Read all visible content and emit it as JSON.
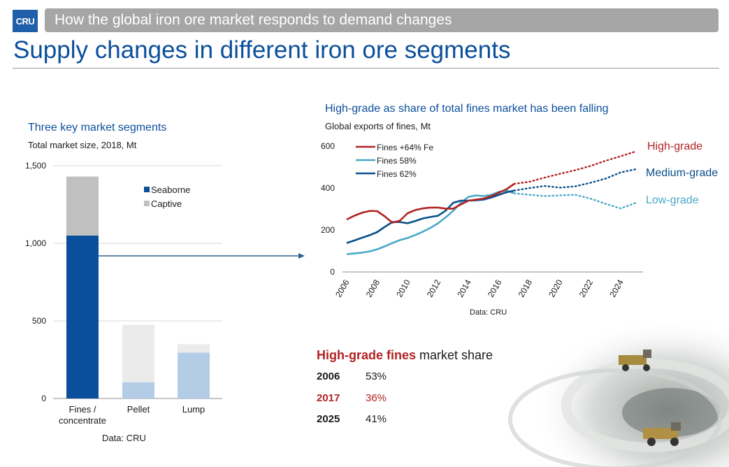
{
  "header": {
    "logo_text": "CRU",
    "banner": "How the global iron ore market responds to demand changes",
    "title": "Supply changes in different iron ore segments"
  },
  "left_chart_text": {
    "title": "Three key market segments",
    "subtitle": "Total market size, 2018, Mt",
    "source": "Data: CRU"
  },
  "right_chart_text": {
    "title": "High-grade as share of total fines market has been falling",
    "subtitle": "Global exports of fines, Mt",
    "source": "Data: CRU",
    "annotations": [
      "High-grade",
      "Medium-grade",
      "Low-grade"
    ]
  },
  "share": {
    "title_highlight": "High-grade fines",
    "title_rest": " market share",
    "rows": [
      {
        "year": "2006",
        "value": "53%"
      },
      {
        "year": "2017",
        "value": "36%"
      },
      {
        "year": "2025",
        "value": "41%"
      }
    ]
  },
  "colors": {
    "seaborne": "#0a4f9c",
    "captive": "#c0c0c0",
    "seaborne_light": "#b3cde6",
    "captive_light": "#ebebeb",
    "high": "#b22222",
    "low": "#4aa8c8",
    "medium": "#0a4f8a"
  },
  "chart_data": [
    {
      "type": "bar",
      "stacked": true,
      "title": "Three key market segments",
      "ylabel": "Total market size, 2018, Mt",
      "categories": [
        "Fines / concentrate",
        "Pellet",
        "Lump"
      ],
      "category_lines": [
        [
          "Fines /",
          "concentrate"
        ],
        [
          "Pellet"
        ],
        [
          "Lump"
        ]
      ],
      "series": [
        {
          "name": "Seaborne",
          "values": [
            1050,
            105,
            295
          ]
        },
        {
          "name": "Captive",
          "values": [
            380,
            370,
            55
          ]
        }
      ],
      "ylim": [
        0,
        1500
      ],
      "yticks": [
        0,
        500,
        1000,
        1500
      ],
      "ytick_labels": [
        "0",
        "500",
        "1,000",
        "1,500"
      ],
      "legend": "top-right"
    },
    {
      "type": "line",
      "title": "High-grade as share of total fines market has been falling",
      "ylabel": "Global exports of fines, Mt",
      "xlim": [
        2006,
        2025
      ],
      "ylim": [
        0,
        600
      ],
      "yticks": [
        0,
        200,
        400,
        600
      ],
      "xticks": [
        2006,
        2008,
        2010,
        2012,
        2014,
        2016,
        2018,
        2020,
        2022,
        2024
      ],
      "legend": "top-left",
      "series": [
        {
          "name": "Fines +64% Fe",
          "forecast_label": "High-grade",
          "x": [
            2006,
            2006.5,
            2007,
            2007.5,
            2008,
            2008.5,
            2009,
            2009.5,
            2010,
            2010.5,
            2011,
            2011.5,
            2012,
            2012.5,
            2013,
            2013.5,
            2014,
            2014.5,
            2015,
            2015.5,
            2016,
            2016.5,
            2017
          ],
          "y": [
            250,
            268,
            282,
            291,
            290,
            265,
            235,
            245,
            280,
            295,
            303,
            307,
            307,
            302,
            302,
            322,
            340,
            345,
            350,
            362,
            378,
            395,
            420
          ],
          "forecast_x": [
            2017,
            2018,
            2019,
            2020,
            2021,
            2022,
            2023,
            2024,
            2025
          ],
          "forecast_y": [
            420,
            430,
            450,
            468,
            485,
            505,
            530,
            552,
            575
          ]
        },
        {
          "name": "Fines 58%",
          "forecast_label": "Low-grade",
          "x": [
            2006,
            2006.5,
            2007,
            2007.5,
            2008,
            2008.5,
            2009,
            2009.5,
            2010,
            2010.5,
            2011,
            2011.5,
            2012,
            2012.5,
            2013,
            2013.5,
            2014,
            2014.5,
            2015,
            2015.5,
            2016,
            2016.5,
            2017
          ],
          "y": [
            85,
            88,
            92,
            98,
            108,
            122,
            138,
            152,
            162,
            176,
            192,
            210,
            232,
            260,
            292,
            330,
            358,
            365,
            362,
            368,
            382,
            388,
            375
          ],
          "forecast_x": [
            2017,
            2018,
            2019,
            2020,
            2021,
            2022,
            2023,
            2024,
            2025
          ],
          "forecast_y": [
            375,
            368,
            362,
            365,
            368,
            350,
            325,
            303,
            330
          ]
        },
        {
          "name": "Fines 62%",
          "forecast_label": "Medium-grade",
          "x": [
            2006,
            2006.5,
            2007,
            2007.5,
            2008,
            2008.5,
            2009,
            2009.5,
            2010,
            2010.5,
            2011,
            2011.5,
            2012,
            2012.5,
            2013,
            2013.5,
            2014,
            2014.5,
            2015,
            2015.5,
            2016,
            2016.5,
            2017
          ],
          "y": [
            138,
            150,
            163,
            175,
            190,
            215,
            238,
            238,
            232,
            243,
            255,
            262,
            268,
            292,
            330,
            340,
            340,
            342,
            345,
            355,
            368,
            380,
            388
          ],
          "forecast_x": [
            2017,
            2018,
            2019,
            2020,
            2021,
            2022,
            2023,
            2024,
            2025
          ],
          "forecast_y": [
            388,
            400,
            410,
            402,
            408,
            425,
            445,
            475,
            490
          ]
        }
      ]
    }
  ]
}
